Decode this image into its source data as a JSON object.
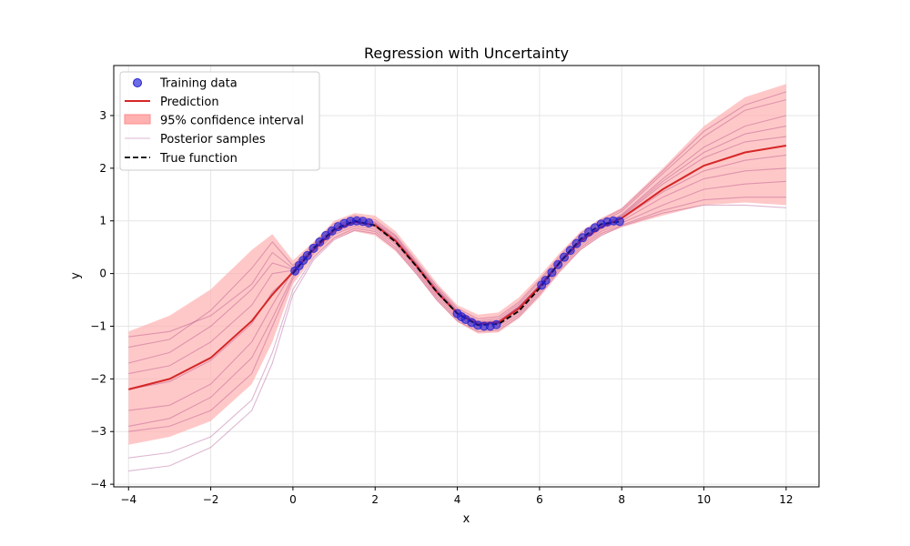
{
  "chart_data": {
    "type": "line",
    "title": "Regression with Uncertainty",
    "xlabel": "x",
    "ylabel": "y",
    "xlim": [
      -4.36,
      12.8
    ],
    "ylim": [
      -4.05,
      3.95
    ],
    "xticks": [
      -4,
      -2,
      0,
      2,
      4,
      6,
      8,
      10,
      12
    ],
    "yticks": [
      -4,
      -3,
      -2,
      -1,
      0,
      1,
      2,
      3
    ],
    "grid": true,
    "legend_position": "top-left",
    "legend": {
      "training": "Training data",
      "prediction": "Prediction",
      "ci": "95% confidence interval",
      "samples": "Posterior samples",
      "true_fn": "True function"
    },
    "colors": {
      "training": "#1f1fd6",
      "prediction": "#d62728",
      "ci": "#ffb0b0",
      "samples": "#a0307a",
      "true_fn": "#000000"
    },
    "prediction": {
      "x": [
        -4,
        -3,
        -2,
        -1,
        -0.5,
        0,
        0.5,
        1,
        1.5,
        2,
        2.5,
        3,
        3.5,
        4,
        4.5,
        5,
        5.5,
        6,
        6.5,
        7,
        7.5,
        8,
        9,
        10,
        11,
        12
      ],
      "y": [
        -2.2,
        -2.0,
        -1.6,
        -0.9,
        -0.4,
        0.03,
        0.45,
        0.82,
        0.98,
        0.92,
        0.62,
        0.15,
        -0.35,
        -0.76,
        -0.96,
        -0.93,
        -0.66,
        -0.25,
        0.22,
        0.62,
        0.88,
        1.05,
        1.6,
        2.05,
        2.3,
        2.43
      ]
    },
    "ci_upper": [
      -1.1,
      -0.8,
      -0.3,
      0.45,
      0.75,
      0.25,
      0.6,
      1.0,
      1.15,
      1.1,
      0.8,
      0.32,
      -0.18,
      -0.6,
      -0.78,
      -0.74,
      -0.45,
      -0.05,
      0.4,
      0.8,
      1.05,
      1.25,
      2.0,
      2.8,
      3.35,
      3.6
    ],
    "ci_lower": [
      -3.25,
      -3.1,
      -2.8,
      -2.1,
      -1.3,
      -0.2,
      0.3,
      0.65,
      0.8,
      0.72,
      0.42,
      -0.02,
      -0.52,
      -0.92,
      -1.14,
      -1.12,
      -0.85,
      -0.45,
      0.02,
      0.44,
      0.72,
      0.88,
      1.1,
      1.3,
      1.35,
      1.3
    ],
    "true_function": {
      "x": [
        0,
        0.5,
        1,
        1.5,
        2,
        2.5,
        3,
        3.5,
        4,
        4.5,
        5,
        5.5,
        6,
        6.5,
        7,
        7.5,
        8
      ],
      "y": [
        0.0,
        0.48,
        0.84,
        1.0,
        0.91,
        0.6,
        0.14,
        -0.35,
        -0.76,
        -0.98,
        -0.96,
        -0.71,
        -0.28,
        0.22,
        0.66,
        0.94,
        0.99
      ]
    },
    "training_data": {
      "x": [
        0.05,
        0.15,
        0.25,
        0.35,
        0.5,
        0.65,
        0.8,
        0.95,
        1.1,
        1.25,
        1.4,
        1.55,
        1.7,
        1.85,
        4.0,
        4.1,
        4.2,
        4.35,
        4.5,
        4.65,
        4.8,
        4.95,
        6.05,
        6.15,
        6.3,
        6.45,
        6.6,
        6.75,
        6.9,
        7.05,
        7.2,
        7.35,
        7.5,
        7.65,
        7.8,
        7.95
      ],
      "y": [
        0.05,
        0.15,
        0.25,
        0.34,
        0.48,
        0.6,
        0.72,
        0.81,
        0.89,
        0.95,
        0.99,
        1.0,
        0.99,
        0.96,
        -0.76,
        -0.82,
        -0.87,
        -0.93,
        -0.98,
        -1.0,
        -1.0,
        -0.97,
        -0.22,
        -0.13,
        0.02,
        0.17,
        0.31,
        0.44,
        0.57,
        0.68,
        0.79,
        0.87,
        0.94,
        0.98,
        1.0,
        0.99
      ]
    },
    "posterior_samples": [
      {
        "y": [
          -1.2,
          -1.1,
          -0.8,
          -0.2,
          0.4,
          0.1,
          0.5,
          0.9,
          1.05,
          0.98,
          0.7,
          0.2,
          -0.28,
          -0.7,
          -0.9,
          -0.86,
          -0.58,
          -0.16,
          0.3,
          0.72,
          0.98,
          1.18,
          1.9,
          2.6,
          3.1,
          3.3
        ]
      },
      {
        "y": [
          -3.0,
          -2.9,
          -2.6,
          -1.9,
          -1.0,
          -0.1,
          0.38,
          0.74,
          0.9,
          0.84,
          0.55,
          0.08,
          -0.42,
          -0.82,
          -1.02,
          -1.0,
          -0.74,
          -0.32,
          0.14,
          0.54,
          0.8,
          0.96,
          1.3,
          1.6,
          1.7,
          1.75
        ]
      },
      {
        "y": [
          -2.6,
          -2.5,
          -2.1,
          -1.3,
          -0.6,
          0.05,
          0.47,
          0.84,
          1.0,
          0.93,
          0.63,
          0.16,
          -0.33,
          -0.74,
          -0.94,
          -0.92,
          -0.64,
          -0.24,
          0.23,
          0.63,
          0.9,
          1.08,
          1.7,
          2.2,
          2.5,
          2.6
        ]
      },
      {
        "y": [
          -1.7,
          -1.5,
          -1.0,
          -0.3,
          0.2,
          0.08,
          0.52,
          0.88,
          1.04,
          0.96,
          0.66,
          0.19,
          -0.3,
          -0.72,
          -0.92,
          -0.9,
          -0.62,
          -0.22,
          0.26,
          0.66,
          0.92,
          1.12,
          1.8,
          2.4,
          2.8,
          3.0
        ]
      },
      {
        "y": [
          -3.5,
          -3.4,
          -3.1,
          -2.4,
          -1.5,
          -0.3,
          0.3,
          0.68,
          0.86,
          0.8,
          0.5,
          0.04,
          -0.46,
          -0.86,
          -1.06,
          -1.04,
          -0.78,
          -0.36,
          0.1,
          0.5,
          0.76,
          0.92,
          1.2,
          1.4,
          1.45,
          1.45
        ]
      },
      {
        "y": [
          -2.2,
          -2.05,
          -1.65,
          -0.95,
          -0.35,
          0.0,
          0.44,
          0.8,
          0.97,
          0.91,
          0.61,
          0.14,
          -0.36,
          -0.77,
          -0.97,
          -0.94,
          -0.67,
          -0.26,
          0.21,
          0.6,
          0.87,
          1.04,
          1.55,
          1.95,
          2.15,
          2.25
        ]
      },
      {
        "y": [
          -1.4,
          -1.25,
          -0.7,
          0.1,
          0.6,
          0.15,
          0.56,
          0.95,
          1.1,
          1.02,
          0.72,
          0.24,
          -0.24,
          -0.66,
          -0.86,
          -0.82,
          -0.54,
          -0.12,
          0.34,
          0.76,
          1.02,
          1.22,
          1.95,
          2.7,
          3.2,
          3.45
        ]
      },
      {
        "y": [
          -3.75,
          -3.65,
          -3.3,
          -2.6,
          -1.7,
          -0.4,
          0.26,
          0.64,
          0.82,
          0.76,
          0.46,
          0.0,
          -0.5,
          -0.9,
          -1.1,
          -1.08,
          -0.82,
          -0.4,
          0.06,
          0.46,
          0.72,
          0.9,
          1.15,
          1.3,
          1.3,
          1.25
        ]
      },
      {
        "y": [
          -2.9,
          -2.75,
          -2.35,
          -1.6,
          -0.85,
          -0.05,
          0.42,
          0.78,
          0.94,
          0.88,
          0.58,
          0.12,
          -0.38,
          -0.78,
          -0.98,
          -0.96,
          -0.7,
          -0.28,
          0.18,
          0.58,
          0.84,
          1.0,
          1.45,
          1.8,
          1.95,
          2.0
        ]
      },
      {
        "y": [
          -1.9,
          -1.75,
          -1.3,
          -0.6,
          0.0,
          0.06,
          0.5,
          0.86,
          1.02,
          0.95,
          0.65,
          0.18,
          -0.31,
          -0.73,
          -0.93,
          -0.9,
          -0.63,
          -0.22,
          0.25,
          0.65,
          0.91,
          1.1,
          1.75,
          2.3,
          2.65,
          2.8
        ]
      }
    ]
  }
}
